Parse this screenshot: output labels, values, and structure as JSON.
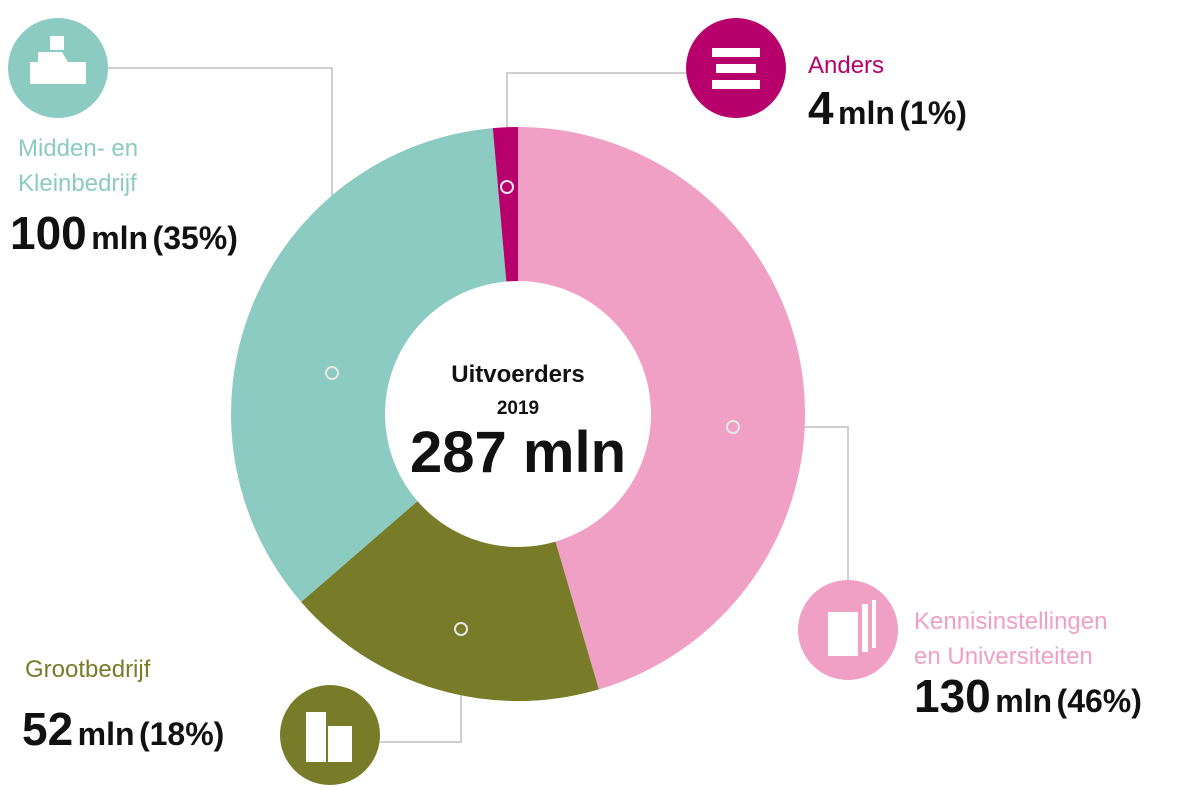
{
  "chart_data": {
    "type": "pie",
    "donut": true,
    "center_title": "Uitvoerders",
    "center_subtitle": "2019",
    "total": 287,
    "unit": "mln",
    "categories": [
      "Kennisinstellingen\nen Universiteiten",
      "Grootbedrijf",
      "Midden- en\nKleinbedrijf",
      "Anders"
    ],
    "values": [
      130,
      52,
      100,
      4
    ],
    "percent_labels": [
      "(46%)",
      "(18%)",
      "(35%)",
      "(1%)"
    ],
    "colors": [
      "#f0a0c5",
      "#787b27",
      "#8bcbc1",
      "#b7006b"
    ]
  }
}
